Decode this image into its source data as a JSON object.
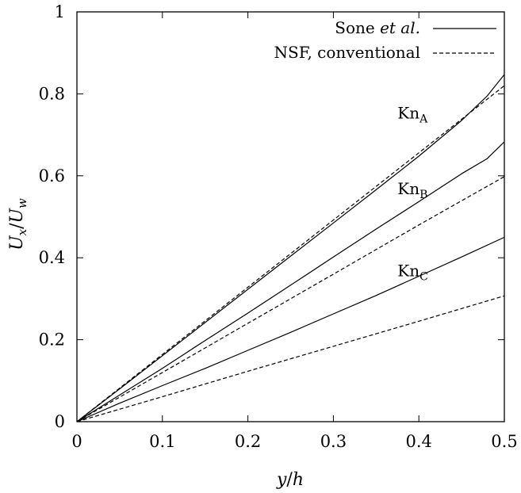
{
  "chart_data": {
    "type": "line",
    "title": "",
    "xlabel": "y/h",
    "ylabel": "U_x/U_w",
    "xlim": [
      0,
      0.5
    ],
    "ylim": [
      0,
      1
    ],
    "x_ticks": [
      "0",
      "0.1",
      "0.2",
      "0.3",
      "0.4",
      "0.5"
    ],
    "y_ticks": [
      "0",
      "0.2",
      "0.4",
      "0.6",
      "0.8",
      "1"
    ],
    "grid": false,
    "legend_position": "top-right",
    "legend": [
      {
        "label_prefix": "Sone ",
        "label_italic": "et al.",
        "style": "solid"
      },
      {
        "label": "NSF, conventional",
        "style": "dashed"
      }
    ],
    "series": [
      {
        "style": "solid",
        "group": "Kn_A",
        "points": [
          [
            0,
            0
          ],
          [
            0.05,
            0.08
          ],
          [
            0.1,
            0.161
          ],
          [
            0.15,
            0.242
          ],
          [
            0.2,
            0.323
          ],
          [
            0.25,
            0.404
          ],
          [
            0.3,
            0.485
          ],
          [
            0.35,
            0.566
          ],
          [
            0.4,
            0.648
          ],
          [
            0.45,
            0.735
          ],
          [
            0.48,
            0.795
          ],
          [
            0.5,
            0.847
          ]
        ]
      },
      {
        "style": "dashed",
        "group": "Kn_A",
        "points": [
          [
            0,
            0
          ],
          [
            0.1,
            0.164
          ],
          [
            0.2,
            0.328
          ],
          [
            0.3,
            0.492
          ],
          [
            0.4,
            0.656
          ],
          [
            0.5,
            0.82
          ]
        ]
      },
      {
        "style": "solid",
        "group": "Kn_B",
        "points": [
          [
            0,
            0
          ],
          [
            0.05,
            0.065
          ],
          [
            0.1,
            0.13
          ],
          [
            0.15,
            0.198
          ],
          [
            0.2,
            0.265
          ],
          [
            0.25,
            0.333
          ],
          [
            0.3,
            0.402
          ],
          [
            0.35,
            0.47
          ],
          [
            0.4,
            0.537
          ],
          [
            0.45,
            0.605
          ],
          [
            0.48,
            0.642
          ],
          [
            0.5,
            0.683
          ]
        ]
      },
      {
        "style": "dashed",
        "group": "Kn_B",
        "points": [
          [
            0,
            0
          ],
          [
            0.1,
            0.12
          ],
          [
            0.2,
            0.24
          ],
          [
            0.3,
            0.36
          ],
          [
            0.4,
            0.48
          ],
          [
            0.5,
            0.598
          ]
        ]
      },
      {
        "style": "solid",
        "group": "Kn_C",
        "points": [
          [
            0,
            0
          ],
          [
            0.05,
            0.045
          ],
          [
            0.1,
            0.088
          ],
          [
            0.15,
            0.13
          ],
          [
            0.2,
            0.174
          ],
          [
            0.25,
            0.218
          ],
          [
            0.3,
            0.263
          ],
          [
            0.35,
            0.308
          ],
          [
            0.4,
            0.355
          ],
          [
            0.45,
            0.402
          ],
          [
            0.5,
            0.45
          ]
        ]
      },
      {
        "style": "dashed",
        "group": "Kn_C",
        "points": [
          [
            0,
            0
          ],
          [
            0.1,
            0.061
          ],
          [
            0.2,
            0.123
          ],
          [
            0.3,
            0.184
          ],
          [
            0.4,
            0.245
          ],
          [
            0.5,
            0.307
          ]
        ]
      }
    ],
    "annotations": [
      {
        "base": "Kn",
        "sub": "A",
        "x": 0.375,
        "y": 0.74
      },
      {
        "base": "Kn",
        "sub": "B",
        "x": 0.375,
        "y": 0.555
      },
      {
        "base": "Kn",
        "sub": "C",
        "x": 0.375,
        "y": 0.355
      }
    ]
  }
}
